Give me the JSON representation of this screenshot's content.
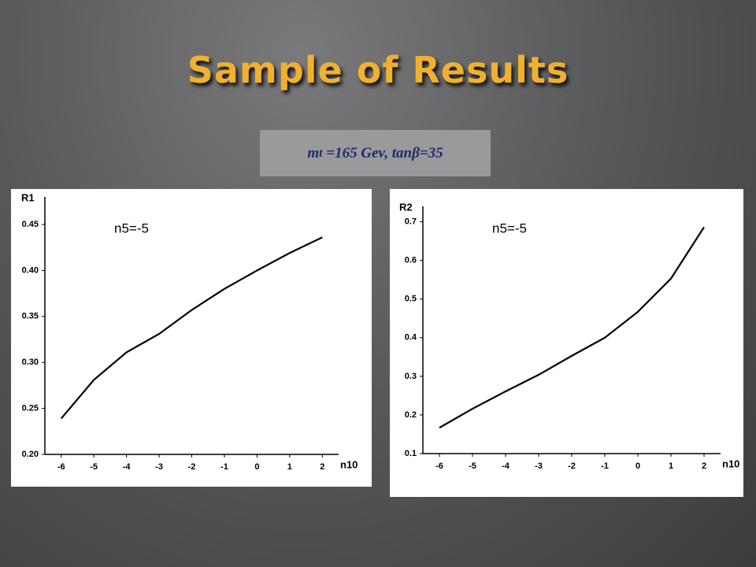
{
  "slide": {
    "title": "Sample of Results",
    "subtitle": {
      "main": "m",
      "sub": "t",
      "rest": " =165 Gev, tanβ=35"
    }
  },
  "chart_data": [
    {
      "type": "line",
      "annotation": "n5=-5",
      "x_label": "n10",
      "y_label": "R1",
      "x": [
        -6,
        -5,
        -4,
        -3,
        -2,
        -1,
        0,
        1,
        2
      ],
      "series": [
        {
          "name": "R1",
          "color": "#000000",
          "values": [
            0.239,
            0.281,
            0.311,
            0.331,
            0.357,
            0.38,
            0.4,
            0.419,
            0.436
          ]
        }
      ],
      "xlim": [
        -6.5,
        2.5
      ],
      "xticks": [
        -6,
        -5,
        -4,
        -3,
        -2,
        -1,
        0,
        1,
        2
      ],
      "ylim": [
        0.2,
        0.48
      ],
      "yticks": [
        {
          "value": 0.2,
          "label": "0.20"
        },
        {
          "value": 0.25,
          "label": "0.25"
        },
        {
          "value": 0.3,
          "label": "0.30"
        },
        {
          "value": 0.35,
          "label": "0.35"
        },
        {
          "value": 0.4,
          "label": "0.40"
        },
        {
          "value": 0.45,
          "label": "0.45"
        }
      ]
    },
    {
      "type": "line",
      "annotation": "n5=-5",
      "x_label": "n10",
      "y_label": "R2",
      "x": [
        -6,
        -5,
        -4,
        -3,
        -2,
        -1,
        0,
        1,
        2
      ],
      "series": [
        {
          "name": "R2",
          "color": "#000000",
          "values": [
            0.167,
            0.216,
            0.261,
            0.304,
            0.353,
            0.4,
            0.467,
            0.553,
            0.686
          ]
        }
      ],
      "xlim": [
        -6.5,
        2.5
      ],
      "xticks": [
        -6,
        -5,
        -4,
        -3,
        -2,
        -1,
        0,
        1,
        2
      ],
      "ylim": [
        0.1,
        0.74
      ],
      "yticks": [
        0.1,
        0.2,
        0.3,
        0.4,
        0.5,
        0.6,
        0.7
      ]
    }
  ]
}
